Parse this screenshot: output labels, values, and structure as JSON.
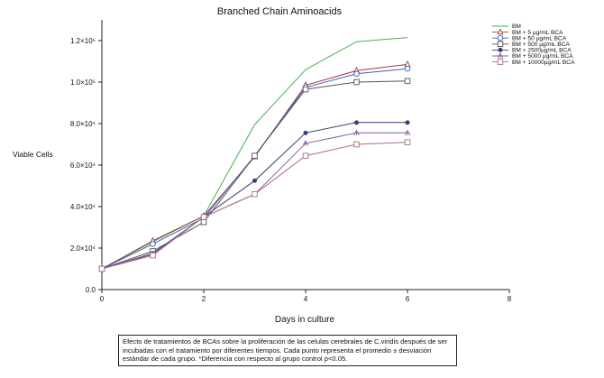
{
  "chart_data": {
    "type": "line",
    "title": "Branched Chain Aminoacids",
    "xlabel": "Days in culture",
    "ylabel": "Viable Cells",
    "xlim": [
      0,
      8
    ],
    "ylim": [
      0,
      130000
    ],
    "x_ticks": [
      0,
      2,
      4,
      6,
      8
    ],
    "x_tick_labels": [
      "0",
      "2",
      "4",
      "6",
      "8"
    ],
    "y_ticks": [
      0,
      20000,
      40000,
      60000,
      80000,
      100000,
      120000
    ],
    "y_tick_labels": [
      "0.0",
      "2.0×10⁴",
      "4.0×10⁴",
      "6.0×10⁴",
      "8.0×10⁴",
      "1.0×10⁵",
      "1.2×10⁵"
    ],
    "grid": false,
    "legend_position": "top-right",
    "x": [
      0,
      1,
      2,
      3,
      4,
      5,
      6
    ],
    "series": [
      {
        "name": "BM",
        "color": "#4caf50",
        "marker": "none",
        "values": [
          10000,
          23000,
          35500,
          79500,
          106000,
          119500,
          121500
        ]
      },
      {
        "name": "BM + 5 µg/mL BCA",
        "color": "#a33b3b",
        "marker": "triangle-open",
        "values": [
          10000,
          23500,
          35500,
          64000,
          98500,
          105500,
          108500
        ]
      },
      {
        "name": "BM + 50 µg/mL BCA",
        "color": "#3f5fbf",
        "marker": "circle-open",
        "values": [
          10000,
          22000,
          34500,
          64500,
          97500,
          104000,
          106500
        ]
      },
      {
        "name": "BM + 500 µg/mL BCA",
        "color": "#555555",
        "marker": "square-open",
        "values": [
          10000,
          18500,
          32500,
          64500,
          96500,
          100000,
          100500
        ]
      },
      {
        "name": "BM + 2500µg/mL BCA",
        "color": "#3a3a7a",
        "marker": "star",
        "values": [
          10000,
          17500,
          35000,
          52500,
          75500,
          80500,
          80500
        ]
      },
      {
        "name": "BM + 5000 µg/mL BCA",
        "color": "#8b5e9e",
        "marker": "plus-triangle",
        "values": [
          10000,
          17000,
          35000,
          46000,
          70500,
          75500,
          75500
        ]
      },
      {
        "name": "BM + 10000µg/mL BCA",
        "color": "#a96f7f",
        "marker": "square-open",
        "values": [
          10000,
          16500,
          35000,
          46000,
          64500,
          70000,
          71000
        ]
      }
    ]
  },
  "caption": "Efecto de  tratamientos de  BCAs  sobre la proliferación de las celulas cerebrales de C.viridis después de ser incubadas con el tratamiento por diferentes tiempos. Cada punto representa el promedio ± desviación estándar de cada grupo. *Diferencia con respecto al grupo control p<0.05."
}
